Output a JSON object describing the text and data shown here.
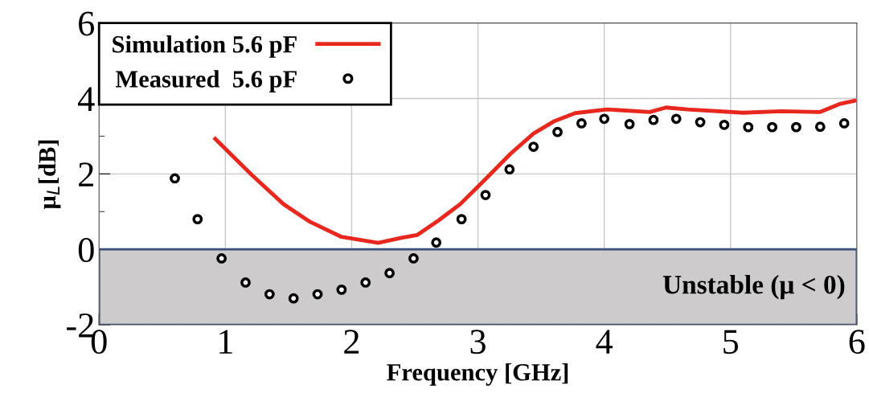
{
  "chart_data": {
    "type": "line",
    "xlabel": "Frequency [GHz]",
    "ylabel": "μ$_{L}$[dB]",
    "xlim": [
      0,
      6
    ],
    "xticks": [
      0,
      1,
      2,
      3,
      4,
      5,
      6
    ],
    "ylim": [
      -2,
      6
    ],
    "yticks": [
      -2,
      0,
      2,
      4,
      6
    ],
    "grid": true,
    "legend": "top left",
    "bands": [
      {
        "axis": "y",
        "from": -2,
        "to": 0,
        "label": "Unstable (μ < 0)",
        "color": "#cdcbcc"
      }
    ],
    "series": [
      {
        "name": "Simulation 5.6 pF",
        "color": "#e8281e",
        "line_style": "solid",
        "marker": "none",
        "x": [
          0.92,
          1.21,
          1.46,
          1.67,
          1.92,
          2.21,
          2.4,
          2.52,
          2.69,
          2.86,
          3.03,
          3.26,
          3.44,
          3.6,
          3.77,
          4.02,
          4.36,
          4.49,
          4.66,
          5.1,
          5.4,
          5.71,
          5.87,
          5.98
        ],
        "values": [
          2.93,
          1.97,
          1.2,
          0.73,
          0.33,
          0.17,
          0.31,
          0.38,
          0.77,
          1.2,
          1.76,
          2.54,
          3.07,
          3.39,
          3.61,
          3.71,
          3.64,
          3.76,
          3.71,
          3.62,
          3.66,
          3.64,
          3.86,
          3.94
        ]
      },
      {
        "name": "Measured  5.6 pF",
        "type": "scatter",
        "color": "#000000",
        "marker": "circle",
        "x": [
          0.6,
          0.78,
          0.97,
          1.16,
          1.35,
          1.54,
          1.73,
          1.92,
          2.11,
          2.3,
          2.49,
          2.67,
          2.87,
          3.06,
          3.25,
          3.44,
          3.63,
          3.82,
          4.0,
          4.2,
          4.39,
          4.57,
          4.76,
          4.95,
          5.14,
          5.33,
          5.52,
          5.71,
          5.9
        ],
        "values": [
          1.88,
          0.8,
          -0.24,
          -0.88,
          -1.19,
          -1.3,
          -1.19,
          -1.07,
          -0.88,
          -0.63,
          -0.24,
          0.18,
          0.8,
          1.44,
          2.12,
          2.72,
          3.11,
          3.34,
          3.46,
          3.32,
          3.43,
          3.46,
          3.37,
          3.3,
          3.24,
          3.24,
          3.24,
          3.25,
          3.34
        ]
      }
    ]
  }
}
